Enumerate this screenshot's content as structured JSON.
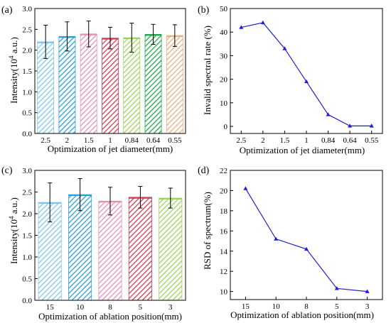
{
  "chart_data": [
    {
      "panel_label": "(a)",
      "type": "bar",
      "xlabel": "Optimization of jet diameter(mm)",
      "ylabel_pre": "Intensity(10",
      "ylabel_sup": "4",
      "ylabel_post": " a.u.)",
      "categories": [
        "2.5",
        "2",
        "1.5",
        "1",
        "0.84",
        "0.64",
        "0.55"
      ],
      "values": [
        2.2,
        2.33,
        2.39,
        2.29,
        2.3,
        2.38,
        2.35
      ],
      "errors": [
        0.4,
        0.35,
        0.31,
        0.26,
        0.35,
        0.24,
        0.26
      ],
      "bar_colors": [
        "#7fc7e9",
        "#2a9fd6",
        "#e58fb5",
        "#d9384f",
        "#9ed35a",
        "#1fa84a",
        "#e8b07a"
      ],
      "ylim": [
        0,
        3.0
      ],
      "yticks": [
        "0.0",
        "0.5",
        "1.0",
        "1.5",
        "2.0",
        "2.5",
        "3.0"
      ],
      "grid": false
    },
    {
      "panel_label": "(b)",
      "type": "line",
      "xlabel": "Optimization of jet diameter(mm)",
      "ylabel": "Invalid spectral rate (%)",
      "categories": [
        "2.5",
        "2",
        "1.5",
        "1",
        "0.84",
        "0.64",
        "0.55"
      ],
      "values": [
        42,
        44,
        33,
        19,
        5,
        0.2,
        0.2
      ],
      "ylim": [
        -3,
        50
      ],
      "yticks": [
        "0",
        "10",
        "20",
        "30",
        "40",
        "50"
      ],
      "line_color": "#1f1fcf",
      "marker": "triangle",
      "grid": false
    },
    {
      "panel_label": "(c)",
      "type": "bar",
      "xlabel": "Optimization of ablation position(mm)",
      "ylabel_pre": "Intensity(10",
      "ylabel_sup": "4",
      "ylabel_post": " a.u.)",
      "categories": [
        "15",
        "10",
        "8",
        "5",
        "3"
      ],
      "values": [
        2.26,
        2.44,
        2.29,
        2.38,
        2.36
      ],
      "errors": [
        0.45,
        0.37,
        0.32,
        0.25,
        0.23
      ],
      "bar_colors": [
        "#7fc7e9",
        "#2a9fd6",
        "#e58fb5",
        "#d9384f",
        "#9ed35a"
      ],
      "ylim": [
        0,
        3.0
      ],
      "yticks": [
        "0.0",
        "0.5",
        "1.0",
        "1.5",
        "2.0",
        "2.5",
        "3.0"
      ],
      "grid": false
    },
    {
      "panel_label": "(d)",
      "type": "line",
      "xlabel": "Optimization of ablation position(mm)",
      "ylabel": "RSD of spectrum(%)",
      "categories": [
        "15",
        "10",
        "8",
        "5",
        "3"
      ],
      "values": [
        20.2,
        15.2,
        14.2,
        10.3,
        10.0
      ],
      "ylim": [
        9.2,
        22
      ],
      "yticks": [
        "10",
        "12",
        "14",
        "16",
        "18",
        "20",
        "22"
      ],
      "line_color": "#1f1fcf",
      "marker": "triangle",
      "grid": false
    }
  ]
}
